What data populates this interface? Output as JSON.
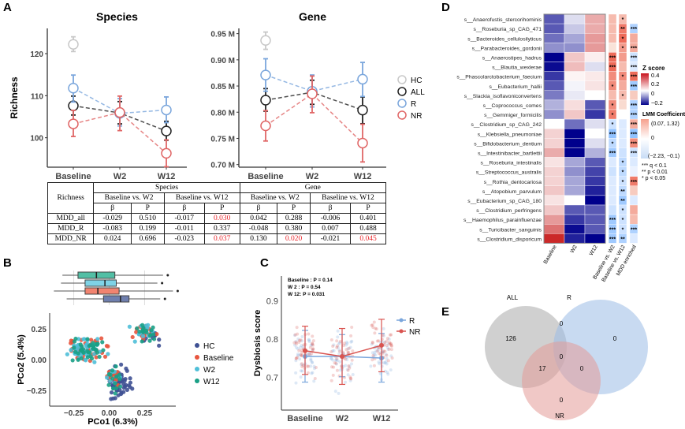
{
  "panel_labels": [
    "A",
    "B",
    "C",
    "D",
    "E"
  ],
  "chart_data": [
    {
      "id": "A-species",
      "type": "line",
      "title": "Species",
      "ylabel": "Richness",
      "categories": [
        "Baseline",
        "W2",
        "W12"
      ],
      "ylim": [
        93,
        126
      ],
      "yticks": [
        100,
        110,
        120
      ],
      "series": [
        {
          "name": "HC",
          "color": "#c8c8c8",
          "values": [
            122.2,
            null,
            null
          ],
          "lo": [
            120.5,
            null,
            null
          ],
          "hi": [
            124.0,
            null,
            null
          ]
        },
        {
          "name": "ALL",
          "color": "#222222",
          "values": [
            107.6,
            105.9,
            101.6
          ],
          "lo": [
            105.4,
            103.3,
            99.4
          ],
          "hi": [
            109.9,
            108.6,
            103.9
          ]
        },
        {
          "name": "R",
          "color": "#7aa6dc",
          "values": [
            111.8,
            105.8,
            106.6
          ],
          "lo": [
            108.5,
            102.8,
            103.6
          ],
          "hi": [
            114.9,
            109.3,
            109.7
          ]
        },
        {
          "name": "NR",
          "color": "#e06666",
          "values": [
            103.3,
            106.0,
            96.3
          ],
          "lo": [
            100.3,
            101.7,
            93.1
          ],
          "hi": [
            106.5,
            109.9,
            99.5
          ]
        }
      ]
    },
    {
      "id": "A-gene",
      "type": "line",
      "title": "Gene",
      "categories": [
        "Baseline",
        "W2",
        "W12"
      ],
      "ylim": [
        0.695,
        0.96
      ],
      "yticks": [
        0.7,
        0.75,
        0.8,
        0.85,
        0.9,
        0.95
      ],
      "ytick_labels": [
        "0.70 M",
        "0.75 M",
        "0.80 M",
        "0.85 M",
        "0.90 M",
        "0.95 M"
      ],
      "series": [
        {
          "name": "HC",
          "color": "#c8c8c8",
          "values": [
            0.937,
            null,
            null
          ],
          "lo": [
            0.92,
            null,
            null
          ],
          "hi": [
            0.953,
            null,
            null
          ]
        },
        {
          "name": "ALL",
          "color": "#222222",
          "values": [
            0.823,
            0.838,
            0.804
          ],
          "lo": [
            0.802,
            0.815,
            0.778
          ],
          "hi": [
            0.845,
            0.861,
            0.829
          ]
        },
        {
          "name": "R",
          "color": "#7aa6dc",
          "values": [
            0.871,
            0.84,
            0.863
          ],
          "lo": [
            0.84,
            0.81,
            0.83
          ],
          "hi": [
            0.902,
            0.871,
            0.895
          ]
        },
        {
          "name": "NR",
          "color": "#e06666",
          "values": [
            0.774,
            0.835,
            0.741
          ],
          "lo": [
            0.745,
            0.799,
            0.705
          ],
          "hi": [
            0.803,
            0.869,
            0.777
          ]
        }
      ]
    },
    {
      "id": "B-pcoa",
      "type": "scatter",
      "xlabel": "PCo1 (6.3%)",
      "ylabel": "PCo2 (5.4%)",
      "xlim": [
        -0.42,
        0.47
      ],
      "ylim": [
        -0.38,
        0.38
      ],
      "xticks": [
        -0.25,
        0,
        0.25
      ],
      "xtick_labels": [
        "−0.25",
        "0.00",
        "0.25"
      ],
      "yticks": [
        -0.25,
        0,
        0.25
      ],
      "ytick_labels": [
        "−0.25",
        "0.00",
        "0.25"
      ],
      "legend_position": "right",
      "groups": [
        {
          "name": "HC",
          "color": "#3f5193"
        },
        {
          "name": "Baseline",
          "color": "#e8553e"
        },
        {
          "name": "W2",
          "color": "#4fbfd8"
        },
        {
          "name": "W12",
          "color": "#1aa086"
        }
      ],
      "boxplots": [
        {
          "group": "W12",
          "color": "#52bfa5",
          "q1": -0.22,
          "median": -0.09,
          "q3": 0.04,
          "min": -0.33,
          "max": 0.38
        },
        {
          "group": "W2",
          "color": "#7fd3e6",
          "q1": -0.17,
          "median": -0.03,
          "q3": 0.05,
          "min": -0.34,
          "max": 0.34
        },
        {
          "group": "Baseline",
          "color": "#f28470",
          "q1": -0.17,
          "median": -0.08,
          "q3": 0.07,
          "min": -0.39,
          "max": 0.45
        },
        {
          "group": "HC",
          "color": "#6f7fae",
          "q1": -0.04,
          "median": 0.08,
          "q3": 0.14,
          "min": -0.3,
          "max": 0.36
        }
      ]
    },
    {
      "id": "C-dysbiosis",
      "type": "line",
      "ylabel": "Dysbiosis score",
      "categories": [
        "Baseline",
        "W2",
        "W12"
      ],
      "ylim": [
        0.615,
        0.965
      ],
      "yticks": [
        0.7,
        0.8,
        0.9
      ],
      "annotations": [
        "Baseline : P = 0.14",
        "W 2 :        P = 0.54",
        "W 12:       P = 0.031"
      ],
      "legend_position": "right",
      "series": [
        {
          "name": "R",
          "color": "#7aa6dc",
          "values": [
            0.755,
            0.755,
            0.751
          ],
          "lo": [
            0.688,
            0.702,
            0.688
          ],
          "hi": [
            0.823,
            0.812,
            0.815
          ]
        },
        {
          "name": "NR",
          "color": "#d9534f",
          "values": [
            0.77,
            0.755,
            0.784
          ],
          "lo": [
            0.708,
            0.682,
            0.715
          ],
          "hi": [
            0.834,
            0.828,
            0.852
          ]
        }
      ]
    },
    {
      "id": "D-heatmap",
      "type": "heatmap",
      "columns": [
        "Baseline",
        "W2",
        "W12"
      ],
      "lmm_columns": [
        "Baseline vs. W2",
        "Baseline vs. W12",
        "MDD enriched"
      ],
      "zscore_legend": {
        "title": "Z score",
        "ticks": [
          "0.4",
          "0.2",
          "0",
          "−0.2"
        ]
      },
      "lmm_legend": {
        "title": "LMM Coefficient",
        "labels": [
          "(0.07, 1.32)",
          "0",
          "(−2.23, −0.1)"
        ]
      },
      "sig_legend": [
        "*** q < 0.1",
        "** p < 0.01",
        "* p < 0.05"
      ],
      "rows": [
        {
          "name": "s__Anaerofustis_stercorihominis",
          "z": [
            -0.15,
            -0.03,
            0.15
          ],
          "lmm": [
            0.3,
            0.3,
            null
          ],
          "sig": [
            "",
            "*",
            ""
          ]
        },
        {
          "name": "s__Roseburia_sp_CAG_471",
          "z": [
            -0.15,
            -0.05,
            0.15
          ],
          "lmm": [
            0.3,
            0.7,
            -0.4
          ],
          "sig": [
            "",
            "**",
            "***"
          ]
        },
        {
          "name": "s__Bacteroides_cellulosilyticus",
          "z": [
            -0.13,
            -0.08,
            0.18
          ],
          "lmm": [
            0.3,
            0.8,
            0.4
          ],
          "sig": [
            "",
            "*",
            ""
          ]
        },
        {
          "name": "s__Parabacteroides_gordonii",
          "z": [
            -0.1,
            -0.1,
            0.18
          ],
          "lmm": [
            0.05,
            0.5,
            0.4
          ],
          "sig": [
            "",
            "*",
            "***"
          ]
        },
        {
          "name": "s__Anaerostipes_hadrus",
          "z": [
            -0.23,
            0.1,
            0.03
          ],
          "lmm": [
            0.8,
            0.5,
            -0.2
          ],
          "sig": [
            "***",
            "",
            "***"
          ]
        },
        {
          "name": "s__Blautia_wexlerae",
          "z": [
            -0.22,
            0.12,
            -0.03
          ],
          "lmm": [
            0.8,
            0.3,
            -0.1
          ],
          "sig": [
            "***",
            "",
            "***"
          ]
        },
        {
          "name": "s__Phascolarctobacterium_faecium",
          "z": [
            -0.18,
            0.02,
            0.04
          ],
          "lmm": [
            0.6,
            0.6,
            0.8
          ],
          "sig": [
            "",
            "*",
            "***"
          ]
        },
        {
          "name": "s__Eubacterium_hallii",
          "z": [
            -0.15,
            -0.01,
            0.05
          ],
          "lmm": [
            0.6,
            0.4,
            -0.5
          ],
          "sig": [
            "*",
            "",
            "***"
          ]
        },
        {
          "name": "s__Slackia_isoflavoniconvertens",
          "z": [
            -0.12,
            -0.02,
            0.0
          ],
          "lmm": [
            0.3,
            0.3,
            0.2
          ],
          "sig": [
            "",
            "*",
            ""
          ]
        },
        {
          "name": "s__Coprococcus_comes",
          "z": [
            -0.07,
            0.06,
            -0.15
          ],
          "lmm": [
            0.6,
            0.1,
            -0.4
          ],
          "sig": [
            "*",
            "",
            "***"
          ]
        },
        {
          "name": "s__Gemmiger_formicilis",
          "z": [
            -0.1,
            0.1,
            -0.18
          ],
          "lmm": [
            0.7,
            null,
            -0.4
          ],
          "sig": [
            "*",
            "",
            "***"
          ]
        },
        {
          "name": "s__Clostridium_sp_CAG_242",
          "z": [
            0.0,
            -0.13,
            -0.03
          ],
          "lmm": [
            -0.2,
            -0.1,
            0.4
          ],
          "sig": [
            "*",
            "",
            "***"
          ]
        },
        {
          "name": "s__Klebsiella_pneumoniae",
          "z": [
            0.08,
            -0.23,
            0.0
          ],
          "lmm": [
            -0.6,
            -0.1,
            -0.6
          ],
          "sig": [
            "***",
            "",
            "***"
          ]
        },
        {
          "name": "s__Bifidobacterium_dentium",
          "z": [
            0.08,
            -0.23,
            -0.03
          ],
          "lmm": [
            -0.3,
            -0.1,
            0.6
          ],
          "sig": [
            "*",
            "",
            "***"
          ]
        },
        {
          "name": "s__Intestinibacter_bartlettii",
          "z": [
            0.15,
            -0.23,
            -0.07
          ],
          "lmm": [
            -0.5,
            -0.2,
            -0.2
          ],
          "sig": [
            "***",
            "",
            "***"
          ]
        },
        {
          "name": "s__Roseburia_intestinalis",
          "z": [
            0.05,
            -0.08,
            -0.15
          ],
          "lmm": [
            -0.1,
            -0.3,
            -0.1
          ],
          "sig": [
            "",
            "*",
            ""
          ]
        },
        {
          "name": "s__Streptococcus_australis",
          "z": [
            0.08,
            -0.1,
            -0.17
          ],
          "lmm": [
            -0.2,
            -0.3,
            0.0
          ],
          "sig": [
            "",
            "*",
            ""
          ]
        },
        {
          "name": "s__Rothia_dentocariosa",
          "z": [
            0.08,
            -0.08,
            -0.18
          ],
          "lmm": [
            -0.1,
            -0.2,
            0.7
          ],
          "sig": [
            "",
            "*",
            "***"
          ]
        },
        {
          "name": "s__Atopobium_parvulum",
          "z": [
            0.1,
            -0.08,
            -0.2
          ],
          "lmm": [
            -0.1,
            -0.3,
            0.2
          ],
          "sig": [
            "",
            "**",
            ""
          ]
        },
        {
          "name": "s__Eubacterium_sp_CAG_180",
          "z": [
            0.05,
            0.0,
            -0.23
          ],
          "lmm": [
            -0.1,
            -0.5,
            -0.1
          ],
          "sig": [
            "",
            "**",
            ""
          ]
        },
        {
          "name": "s__Clostridium_perfringens",
          "z": [
            0.1,
            -0.15,
            -0.15
          ],
          "lmm": [
            -0.2,
            -0.2,
            0.4
          ],
          "sig": [
            "",
            "*",
            ""
          ]
        },
        {
          "name": "s__Haemophilus_parainfluenzae",
          "z": [
            0.18,
            -0.18,
            -0.15
          ],
          "lmm": [
            -0.5,
            -0.2,
            0.3
          ],
          "sig": [
            "***",
            "*",
            ""
          ]
        },
        {
          "name": "s__Turicibacter_sanguinis",
          "z": [
            0.25,
            -0.22,
            -0.15
          ],
          "lmm": [
            -0.5,
            -0.2,
            -0.4
          ],
          "sig": [
            "***",
            "*",
            "***"
          ]
        },
        {
          "name": "s__Clostridium_disporicum",
          "z": [
            0.38,
            -0.2,
            -0.23
          ],
          "lmm": [
            -0.5,
            -0.4,
            -0.1
          ],
          "sig": [
            "***",
            "**",
            ""
          ]
        }
      ]
    },
    {
      "id": "E-venn",
      "type": "venn",
      "sets": [
        {
          "name": "ALL",
          "color": "#aaaaaa"
        },
        {
          "name": "R",
          "color": "#9bbce6"
        },
        {
          "name": "NR",
          "color": "#e39a98"
        }
      ],
      "regions": {
        "ALL": "126",
        "ALL_R": "0",
        "R": "0",
        "ALL_NR": "17",
        "ALL_R_NR": "0",
        "R_NR": "0",
        "NR": "0"
      }
    }
  ],
  "table": {
    "corner": "Richness",
    "groups": [
      "Species",
      "Gene"
    ],
    "comparisons": [
      "Baseline vs. W2",
      "Baseline vs. W12",
      "Baseline vs. W2",
      "Baseline vs. W12"
    ],
    "stats": [
      "β",
      "P",
      "β",
      "P",
      "β",
      "P",
      "β",
      "P"
    ],
    "rows": [
      {
        "label": "MDD_all",
        "cells": [
          "-0.029",
          "0.510",
          "-0.017",
          "0.030",
          "0.042",
          "0.288",
          "-0.006",
          "0.401"
        ],
        "sig": [
          false,
          false,
          false,
          true,
          false,
          false,
          false,
          false
        ]
      },
      {
        "label": "MDD_R",
        "cells": [
          "-0.083",
          "0.199",
          "-0.011",
          "0.337",
          "-0.048",
          "0.380",
          "0.007",
          "0.488"
        ],
        "sig": [
          false,
          false,
          false,
          false,
          false,
          false,
          false,
          false
        ]
      },
      {
        "label": "MDD_NR",
        "cells": [
          "0.024",
          "0.696",
          "-0.023",
          "0.037",
          "0.130",
          "0.020",
          "-0.021",
          "0.045"
        ],
        "sig": [
          false,
          false,
          false,
          true,
          false,
          true,
          false,
          true
        ]
      }
    ]
  }
}
